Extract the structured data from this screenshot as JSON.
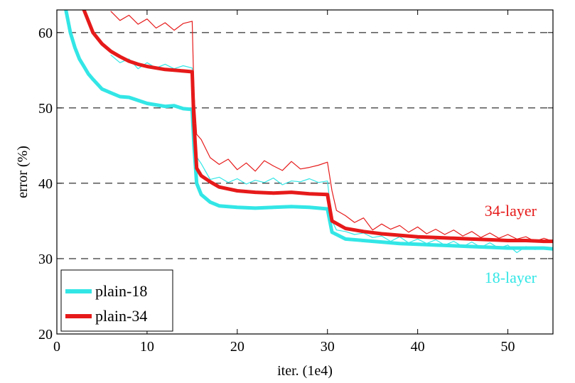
{
  "chart_data": {
    "type": "line",
    "title": "",
    "xlabel": "iter. (1e4)",
    "ylabel": "error (%)",
    "xlim": [
      0,
      55
    ],
    "ylim": [
      20,
      63
    ],
    "x_ticks": [
      0,
      10,
      20,
      30,
      40,
      50
    ],
    "y_ticks": [
      20,
      30,
      40,
      50,
      60
    ],
    "grid": "horizontal dashed",
    "legend_position": "bottom-left",
    "colors": {
      "plain-18": "#33e6e6",
      "plain-34": "#e61a1a"
    },
    "legend": [
      "plain-18",
      "plain-34"
    ],
    "annotations": [
      {
        "text": "34-layer",
        "color": "#e61a1a"
      },
      {
        "text": "18-layer",
        "color": "#33e6e6"
      }
    ],
    "series": [
      {
        "name": "plain-18",
        "role": "test",
        "x": [
          1,
          1.5,
          2,
          2.5,
          3,
          3.5,
          4,
          5,
          6,
          7,
          8,
          9,
          10,
          11,
          12,
          13,
          14,
          15,
          15.2,
          15.5,
          16,
          17,
          18,
          20,
          22,
          24,
          26,
          28,
          30,
          30.5,
          32,
          34,
          36,
          38,
          40,
          42,
          44,
          46,
          48,
          50,
          52,
          54,
          55
        ],
        "y": [
          63,
          60,
          58,
          56.5,
          55.5,
          54.5,
          53.8,
          52.5,
          52,
          51.5,
          51.4,
          51,
          50.6,
          50.4,
          50.2,
          50.3,
          49.9,
          49.8,
          45,
          40,
          38.5,
          37.5,
          37,
          36.8,
          36.7,
          36.8,
          36.9,
          36.8,
          36.6,
          33.5,
          32.6,
          32.4,
          32.2,
          32,
          31.9,
          31.8,
          31.7,
          31.6,
          31.5,
          31.4,
          31.4,
          31.4,
          31.3
        ]
      },
      {
        "name": "plain-34",
        "role": "test",
        "x": [
          3,
          4,
          5,
          6,
          7,
          8,
          9,
          10,
          11,
          12,
          13,
          14,
          15,
          15.2,
          15.5,
          16,
          17,
          18,
          20,
          22,
          24,
          26,
          28,
          30,
          30.5,
          32,
          34,
          36,
          38,
          40,
          42,
          44,
          46,
          48,
          50,
          52,
          54,
          55
        ],
        "y": [
          63,
          60,
          58.5,
          57.5,
          56.8,
          56.2,
          55.8,
          55.5,
          55.3,
          55.1,
          55,
          54.9,
          54.8,
          48,
          42,
          41,
          40.2,
          39.5,
          39,
          38.8,
          38.7,
          38.8,
          38.6,
          38.5,
          35,
          34,
          33.6,
          33.3,
          33.1,
          32.9,
          32.8,
          32.7,
          32.6,
          32.5,
          32.4,
          32.4,
          32.3,
          32.3
        ]
      },
      {
        "name": "plain-18",
        "role": "train",
        "x": [
          6,
          7,
          8,
          9,
          10,
          11,
          12,
          13,
          14,
          15,
          15.2,
          15.5,
          16,
          17,
          18,
          19,
          20,
          21,
          22,
          23,
          24,
          25,
          26,
          27,
          28,
          29,
          30,
          30.5,
          31,
          32,
          33,
          34,
          35,
          36,
          37,
          38,
          39,
          40,
          41,
          42,
          43,
          44,
          45,
          46,
          47,
          48,
          49,
          50,
          51,
          52,
          53,
          54,
          55
        ],
        "y": [
          57,
          56,
          56.5,
          55.2,
          56,
          55.3,
          55.8,
          55.2,
          55.6,
          55.3,
          49,
          43.5,
          42.6,
          40.5,
          40.8,
          40.1,
          40.6,
          39.9,
          40.4,
          40.1,
          40.7,
          39.8,
          40.3,
          40.2,
          40.6,
          40.1,
          40.3,
          35,
          33.8,
          33.6,
          33.2,
          33.4,
          32.8,
          33,
          32.3,
          32.9,
          32.1,
          32.6,
          32,
          32.5,
          31.8,
          32.3,
          31.6,
          32.2,
          31.5,
          32.1,
          31.4,
          31.8,
          30.8,
          31.6,
          31.2,
          31.4,
          31.1
        ]
      },
      {
        "name": "plain-34",
        "role": "train",
        "x": [
          6,
          7,
          8,
          9,
          10,
          11,
          12,
          13,
          14,
          15,
          15.2,
          15.5,
          16,
          17,
          18,
          19,
          20,
          21,
          22,
          23,
          24,
          25,
          26,
          27,
          28,
          29,
          30,
          30.5,
          31,
          32,
          33,
          34,
          35,
          36,
          37,
          38,
          39,
          40,
          41,
          42,
          43,
          44,
          45,
          46,
          47,
          48,
          49,
          50,
          51,
          52,
          53,
          54,
          55
        ],
        "y": [
          62.8,
          61.6,
          62.3,
          61.1,
          61.8,
          60.6,
          61.3,
          60.3,
          61.2,
          61.5,
          52,
          46.5,
          45.8,
          43.4,
          42.5,
          43.2,
          41.8,
          42.7,
          41.6,
          43,
          42.3,
          41.7,
          42.9,
          41.9,
          42.1,
          42.4,
          42.8,
          39,
          36.4,
          35.7,
          34.8,
          35.4,
          33.8,
          34.6,
          33.9,
          34.4,
          33.5,
          34.2,
          33.3,
          33.9,
          33.2,
          33.8,
          33,
          33.6,
          32.8,
          33.4,
          32.7,
          33.2,
          32.6,
          32.9,
          32.3,
          32.7,
          32.3
        ]
      }
    ]
  }
}
